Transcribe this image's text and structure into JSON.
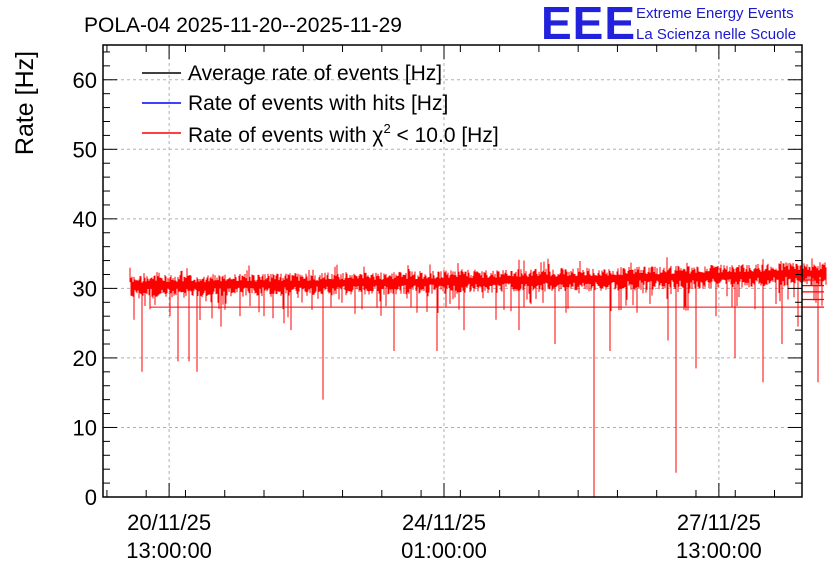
{
  "chart_data": {
    "type": "line",
    "title": "POLA-04 2025-11-20--2025-11-29",
    "xlabel": "",
    "ylabel": "Rate [Hz]",
    "ylim": [
      0,
      65
    ],
    "yticks": [
      0,
      10,
      20,
      30,
      40,
      50,
      60
    ],
    "x_units": "days since 2025-11-20 00:00",
    "xlim": [
      -0.3,
      8.6
    ],
    "xticks": [
      {
        "x": 0.5417,
        "date": "20/11/25",
        "time": "13:00:00"
      },
      {
        "x": 4.0417,
        "date": "24/11/25",
        "time": "01:00:00"
      },
      {
        "x": 7.5417,
        "date": "27/11/25",
        "time": "13:00:00"
      }
    ],
    "grid": true,
    "legend_position": "top-left",
    "series": [
      {
        "name": "Average rate of events [Hz]",
        "color": "#000000",
        "mean": 30.5,
        "spread": 1.0
      },
      {
        "name": "Rate of events with hits [Hz]",
        "color": "#0000ff",
        "mean": 30.5,
        "spread": 1.0
      },
      {
        "name": "Rate of events with χ² < 10.0 [Hz]",
        "color": "#ff0000",
        "x_start": 0.05,
        "x_end": 8.9,
        "trend": [
          [
            0.05,
            30.3
          ],
          [
            2.0,
            30.6
          ],
          [
            4.0,
            31.0
          ],
          [
            6.0,
            31.4
          ],
          [
            7.5,
            31.8
          ],
          [
            8.9,
            32.2
          ]
        ],
        "spread": 1.0,
        "dips": [
          [
            0.1,
            25.5
          ],
          [
            0.2,
            18.0
          ],
          [
            0.3,
            27.0
          ],
          [
            0.55,
            26.0
          ],
          [
            0.65,
            19.5
          ],
          [
            0.8,
            19.5
          ],
          [
            0.9,
            18.0
          ],
          [
            1.2,
            24.5
          ],
          [
            1.45,
            26.0
          ],
          [
            1.75,
            26.0
          ],
          [
            2.0,
            25.0
          ],
          [
            2.1,
            24.0
          ],
          [
            2.5,
            14.0
          ],
          [
            3.0,
            27.0
          ],
          [
            3.4,
            21.0
          ],
          [
            3.7,
            26.5
          ],
          [
            3.95,
            21.0
          ],
          [
            4.3,
            24.0
          ],
          [
            4.7,
            25.5
          ],
          [
            5.0,
            24.0
          ],
          [
            5.45,
            22.0
          ],
          [
            5.6,
            26.5
          ],
          [
            5.95,
            0.0
          ],
          [
            6.15,
            21.0
          ],
          [
            6.5,
            26.5
          ],
          [
            6.9,
            22.5
          ],
          [
            7.0,
            3.5
          ],
          [
            7.25,
            18.5
          ],
          [
            7.5,
            26.0
          ],
          [
            7.75,
            20.0
          ],
          [
            8.0,
            27.0
          ],
          [
            8.1,
            16.5
          ],
          [
            8.35,
            22.0
          ],
          [
            8.55,
            24.5
          ],
          [
            8.8,
            16.5
          ],
          [
            8.85,
            27.5
          ]
        ],
        "tail_levels": [
          27.3,
          28.4,
          29.5,
          30.4,
          31.2
        ]
      }
    ]
  },
  "legend": {
    "entry_avg": "Average rate of events [Hz]",
    "entry_hits": "Rate of events with hits [Hz]",
    "entry_chi_prefix": "Rate of events with χ",
    "entry_chi_sup": "2",
    "entry_chi_suffix": " < 10.0 [Hz]"
  },
  "logo": {
    "mark": "EEE",
    "line1": "Extreme Energy Events",
    "line2": "La Scienza nelle Scuole",
    "color": "#2222dd"
  }
}
